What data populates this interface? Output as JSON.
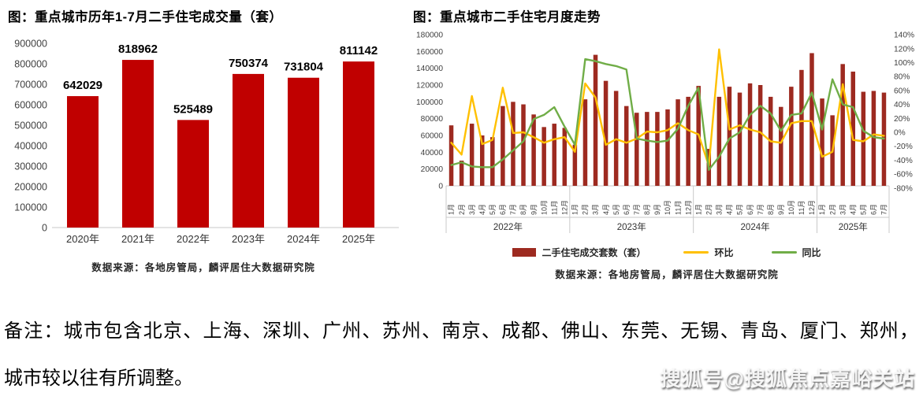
{
  "colors": {
    "bar_primary": "#c00000",
    "bar_dark": "#9d2a20",
    "mom_line": "#ffc000",
    "yoy_line": "#70ad47",
    "axis_line": "#c9c9c9"
  },
  "note": {
    "line1": "备注：城市包含北京、上海、深圳、广州、苏州、南京、成都、佛山、东莞、无锡、青岛、厦门、郑州，",
    "line2": "城市较以往有所调整。"
  },
  "watermark": "搜狐号@搜狐焦点嘉峪关站",
  "chart_data": [
    {
      "type": "bar",
      "title": "图：重点城市历年1-7月二手住宅成交量（套）",
      "source": "数据来源：各地房管局，麟评居住大数据研究院",
      "categories": [
        "2020年",
        "2021年",
        "2022年",
        "2023年",
        "2024年",
        "2025年"
      ],
      "values": [
        642029,
        818962,
        525489,
        750374,
        731804,
        811142
      ],
      "xlabel": "",
      "ylabel": "",
      "ylim": [
        0,
        900000
      ],
      "ytick_step": 100000,
      "grid": false,
      "data_labels": true
    },
    {
      "type": "combo",
      "title": "图：重点城市二手住宅月度走势",
      "source": "数据来源：各地房管局，麟评居住大数据研究院",
      "legend_position": "bottom",
      "grid": false,
      "left_axis": {
        "min": 0,
        "max": 180000,
        "step": 20000
      },
      "right_axis": {
        "min": -80,
        "max": 140,
        "step": 20,
        "suffix": "%"
      },
      "year_groups": [
        {
          "label": "2022年",
          "months": 12
        },
        {
          "label": "2023年",
          "months": 12
        },
        {
          "label": "2024年",
          "months": 12
        },
        {
          "label": "2025年",
          "months": 7
        }
      ],
      "x": [
        "1月",
        "2月",
        "3月",
        "4月",
        "5月",
        "6月",
        "7月",
        "8月",
        "9月",
        "10月",
        "11月",
        "12月",
        "1月",
        "2月",
        "3月",
        "4月",
        "5月",
        "6月",
        "7月",
        "8月",
        "9月",
        "10月",
        "11月",
        "12月",
        "1月",
        "2月",
        "3月",
        "4月",
        "5月",
        "6月",
        "7月",
        "8月",
        "9月",
        "10月",
        "11月",
        "12月",
        "1月",
        "2月",
        "3月",
        "4月",
        "5月",
        "6月",
        "7月"
      ],
      "series": [
        {
          "name": "二手住宅成交套数（套）",
          "type": "bar",
          "axis": "left",
          "values": [
            72000,
            30000,
            74000,
            60000,
            58000,
            95000,
            100000,
            97000,
            85000,
            70000,
            74000,
            69000,
            49000,
            103000,
            156000,
            125000,
            113000,
            95000,
            87000,
            88000,
            88000,
            91000,
            103000,
            106000,
            119000,
            44000,
            106000,
            118000,
            111000,
            122000,
            120000,
            106000,
            94000,
            118000,
            138000,
            158000,
            104000,
            84000,
            145000,
            136000,
            112000,
            113000,
            111000
          ]
        },
        {
          "name": "环比",
          "type": "line",
          "axis": "right",
          "values": [
            -15,
            -32,
            52,
            -17,
            -11,
            64,
            -1,
            0,
            -7,
            -15,
            -10,
            -7,
            -28,
            70,
            50,
            -18,
            -10,
            -15,
            -9,
            1,
            0,
            3,
            13,
            3,
            -3,
            -48,
            119,
            4,
            10,
            4,
            0,
            -13,
            -15,
            13,
            16,
            16,
            -35,
            -28,
            69,
            -11,
            -13,
            -3,
            -5
          ]
        },
        {
          "name": "同比",
          "type": "line",
          "axis": "right",
          "values": [
            -47,
            -43,
            -49,
            -50,
            -50,
            -39,
            -26,
            -13,
            19,
            25,
            36,
            8,
            -18,
            105,
            102,
            98,
            95,
            90,
            -9,
            -12,
            -14,
            -12,
            5,
            38,
            64,
            -54,
            -35,
            -9,
            0,
            25,
            38,
            27,
            2,
            25,
            27,
            57,
            4,
            76,
            40,
            36,
            2,
            -7,
            -9
          ]
        }
      ]
    }
  ]
}
